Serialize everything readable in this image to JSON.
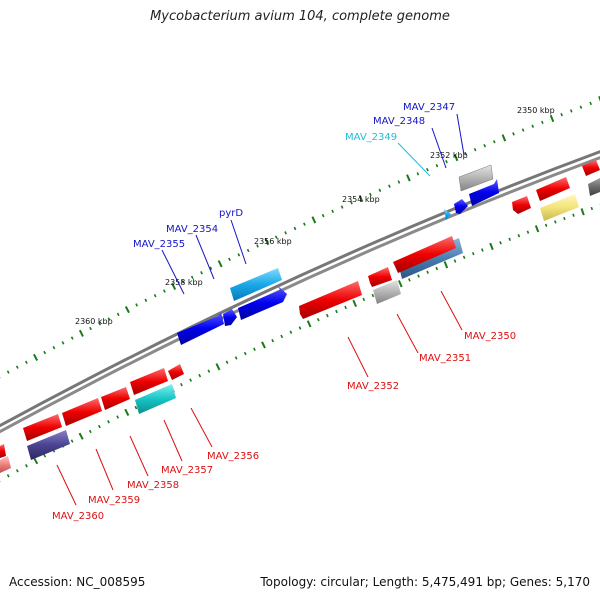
{
  "title": "Mycobacterium avium 104, complete genome",
  "footer": {
    "accession": "Accession: NC_008595",
    "summary": "Topology: circular; Length: 5,475,491 bp; Genes: 5,170"
  },
  "colors": {
    "backbone": "#7a7a7a",
    "tick": "#1a7a1a",
    "label_blue": "#1414c8",
    "label_cyan": "#22bbdd",
    "label_red": "#dd1111"
  },
  "kbp_labels": [
    "2350 kbp",
    "2352 kbp",
    "2354 kbp",
    "2356 kbp",
    "2358 kbp",
    "2360 kbp"
  ],
  "genes": {
    "MAV_2347": "MAV_2347",
    "MAV_2348": "MAV_2348",
    "MAV_2349": "MAV_2349",
    "pyrD": "pyrD",
    "MAV_2354": "MAV_2354",
    "MAV_2355": "MAV_2355",
    "MAV_2350": "MAV_2350",
    "MAV_2351": "MAV_2351",
    "MAV_2352": "MAV_2352",
    "MAV_2356": "MAV_2356",
    "MAV_2357": "MAV_2357",
    "MAV_2358": "MAV_2358",
    "MAV_2359": "MAV_2359",
    "MAV_2360": "MAV_2360"
  }
}
